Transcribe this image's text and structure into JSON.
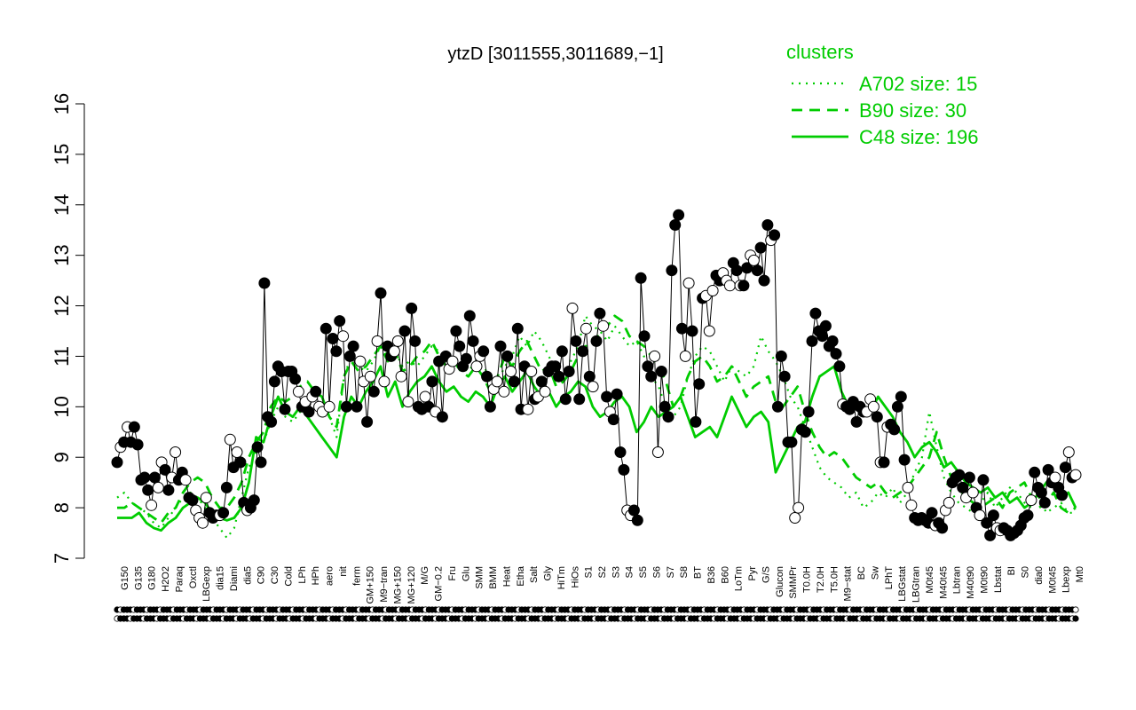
{
  "chart_data": {
    "type": "line",
    "title": "ytzD [3011555,3011689,−1]",
    "xlabel": "",
    "ylabel": "",
    "ylim": [
      7,
      16
    ],
    "yticks": [
      7,
      8,
      9,
      10,
      11,
      12,
      13,
      14,
      15,
      16
    ],
    "grid": false,
    "legend": {
      "title": "clusters",
      "placement": "top-right",
      "color": "#00cc00",
      "entries": [
        {
          "label": "A702 size: 15",
          "style": "dotted"
        },
        {
          "label": "B90 size: 30",
          "style": "dashed"
        },
        {
          "label": "C48 size: 196",
          "style": "solid"
        }
      ]
    },
    "x_tick_labels": [
      "G150",
      "G135",
      "G180",
      "H2O2",
      "Paraq",
      "Oxctl",
      "LBGexp",
      "dia15",
      "Diami",
      "dia5",
      "C90",
      "C30",
      "Cold",
      "LPh",
      "HPh",
      "aero",
      "nit",
      "ferm",
      "GM+150",
      "M9−tran",
      "MG+150",
      "MG+120",
      "M/G",
      "GM−0.2",
      "Fru",
      "Glu",
      "SMM",
      "BMM",
      "Heat",
      "Etha",
      "Salt",
      "Gly",
      "HiTm",
      "HiOs",
      "S1",
      "S2",
      "S3",
      "S4",
      "S5",
      "S6",
      "S7",
      "S8",
      "BT",
      "B36",
      "B60",
      "LoTm",
      "Pyr",
      "G/S",
      "Glucon",
      "SMMPr",
      "T0.0H",
      "T2.0H",
      "T5.0H",
      "M9−stat",
      "BC",
      "Sw",
      "LPhT",
      "LBGstat",
      "LBGtran",
      "M0t45",
      "M40t45",
      "Lbtran",
      "M40t90",
      "M0t90",
      "Lbstat",
      "BI",
      "S0",
      "dia0",
      "M0t45",
      "Lbexp",
      "Mt0"
    ],
    "marker_rows": 2,
    "series": [
      {
        "style": "black-line",
        "values": [
          8.9,
          9.2,
          9.3,
          9.6,
          9.3,
          9.6,
          9.25,
          8.55,
          8.6,
          8.35,
          8.05,
          8.6,
          8.4,
          8.9,
          8.75,
          8.35,
          8.6,
          9.1,
          8.55,
          8.7,
          8.55,
          8.2,
          8.15,
          7.95,
          7.8,
          7.7,
          8.2,
          7.9,
          7.8,
          7.85,
          7.85,
          7.9,
          8.4,
          9.35,
          8.8,
          9.1,
          8.9,
          8.1,
          7.95,
          8.0,
          8.15,
          9.2,
          8.9,
          12.45,
          9.8,
          9.7,
          10.5,
          10.8,
          10.7,
          9.95,
          10.7,
          10.7,
          10.55,
          10.3,
          10.0,
          10.1,
          9.9,
          10.2,
          10.3,
          10.0,
          9.9,
          11.55,
          10.0,
          11.35,
          11.1,
          11.7,
          11.4,
          10.0,
          11.0,
          11.2,
          10.0,
          10.9,
          10.5,
          9.7,
          10.6,
          10.3,
          11.3,
          12.25,
          10.5,
          11.2,
          11.0,
          11.1,
          11.3,
          10.6,
          11.5,
          10.1,
          11.95,
          11.3,
          10.0,
          9.95,
          10.2,
          10.0,
          10.5,
          9.9,
          10.9,
          9.8,
          11.0,
          10.75,
          10.9,
          11.5,
          11.2,
          10.8,
          10.95,
          11.8,
          11.3,
          10.8,
          11.0,
          11.1,
          10.6,
          10.0,
          10.35,
          10.5,
          11.2,
          10.3,
          11.0,
          10.7,
          10.5,
          11.55,
          9.95,
          10.8,
          9.95,
          10.7,
          10.15,
          10.2,
          10.5,
          10.3,
          10.7,
          10.8,
          10.8,
          10.6,
          11.1,
          10.15,
          10.7,
          11.95,
          11.3,
          10.15,
          11.1,
          11.55,
          10.6,
          10.4,
          11.3,
          11.85,
          11.6,
          10.2,
          9.9,
          9.75,
          10.25,
          9.1,
          8.75,
          7.95,
          7.85,
          7.95,
          7.75,
          12.55,
          11.4,
          10.8,
          10.6,
          11.0,
          9.1,
          10.7,
          10.0,
          9.8,
          12.7,
          13.6,
          13.8,
          11.55,
          11.0,
          12.45,
          11.5,
          9.7,
          10.45,
          12.15,
          12.2,
          11.5,
          12.3,
          12.6,
          12.5,
          12.65,
          12.5,
          12.4,
          12.85,
          12.7,
          12.4,
          12.4,
          12.75,
          13.0,
          12.9,
          12.7,
          13.15,
          12.5,
          13.6,
          13.3,
          13.4,
          10.0,
          11.0,
          10.6,
          9.3,
          9.3,
          7.8,
          8.0,
          9.55,
          9.5,
          9.9,
          11.3,
          11.85,
          11.5,
          11.4,
          11.6,
          11.2,
          11.3,
          11.05,
          10.8,
          10.05,
          10.0,
          9.95,
          10.1,
          9.7,
          10.0,
          9.9,
          9.9,
          10.15,
          10.0,
          9.8,
          8.9,
          8.9,
          9.6,
          9.65,
          9.55,
          10.0,
          10.2,
          8.95,
          8.4,
          8.05,
          7.8,
          7.75,
          7.8,
          7.75,
          7.7,
          7.9,
          7.65,
          7.7,
          7.6,
          7.95,
          8.1,
          8.5,
          8.6,
          8.65,
          8.4,
          8.2,
          8.6,
          8.3,
          8.0,
          7.85,
          8.55,
          7.7,
          7.45,
          7.85,
          7.6,
          7.55,
          7.6,
          7.55,
          7.45,
          7.5,
          7.55,
          7.65,
          7.8,
          7.85,
          8.15,
          8.7,
          8.4,
          8.3,
          8.1,
          8.75,
          8.5,
          8.6,
          8.4,
          8.25,
          8.8,
          9.1,
          8.6,
          8.65
        ]
      },
      {
        "style": "green-solid",
        "values": [
          7.8,
          7.8,
          7.8,
          7.9,
          7.7,
          7.6,
          7.55,
          7.7,
          7.8,
          8.0,
          8.1,
          8.2,
          8.1,
          7.9,
          7.8,
          7.75,
          7.8,
          8.0,
          8.5,
          9.4,
          9.3,
          9.8,
          10.2,
          9.9,
          9.8,
          10.0,
          9.8,
          9.6,
          9.4,
          9.2,
          9.0,
          9.8,
          10.2,
          10.0,
          10.3,
          10.5,
          10.8,
          10.2,
          10.5,
          10.0,
          10.3,
          10.5,
          10.6,
          10.8,
          10.5,
          10.3,
          10.4,
          10.2,
          10.1,
          10.3,
          10.2,
          10.0,
          10.4,
          10.6,
          10.3,
          10.5,
          10.7,
          10.4,
          10.2,
          10.3,
          10.0,
          10.2,
          10.3,
          10.5,
          10.4,
          10.0,
          9.8,
          9.9,
          10.1,
          10.2,
          10.0,
          9.5,
          9.7,
          10.0,
          9.8,
          9.9,
          10.0,
          10.2,
          9.8,
          9.4,
          9.5,
          9.6,
          9.4,
          9.8,
          10.2,
          9.9,
          9.6,
          9.8,
          9.9,
          9.7,
          8.7,
          9.0,
          9.3,
          9.6,
          9.7,
          10.2,
          10.6,
          10.7,
          10.8,
          10.3,
          10.0,
          10.1,
          10.0,
          9.9,
          10.2,
          10.0,
          9.8,
          9.5,
          9.3,
          9.0,
          9.2,
          9.3,
          9.1,
          8.8,
          8.9,
          8.7,
          8.5,
          8.4,
          8.3,
          8.4,
          8.2,
          8.3,
          8.1,
          8.2,
          8.0,
          8.1,
          8.3,
          8.5,
          8.6,
          8.2,
          8.3,
          8.0
        ]
      },
      {
        "style": "green-dashed",
        "values": [
          8.0,
          8.0,
          8.1,
          8.0,
          7.9,
          7.8,
          7.7,
          7.9,
          8.0,
          8.3,
          8.5,
          8.6,
          8.5,
          8.2,
          8.0,
          8.0,
          8.2,
          8.5,
          9.0,
          9.3,
          9.5,
          10.0,
          10.2,
          10.1,
          10.2,
          10.4,
          10.5,
          10.3,
          10.2,
          9.8,
          9.6,
          10.6,
          10.9,
          10.7,
          10.8,
          11.0,
          11.2,
          10.9,
          11.1,
          10.7,
          10.8,
          11.0,
          11.1,
          11.3,
          11.0,
          10.8,
          10.9,
          10.7,
          10.6,
          10.8,
          10.6,
          10.3,
          10.6,
          11.0,
          10.8,
          11.1,
          11.3,
          11.0,
          10.7,
          10.8,
          10.4,
          10.5,
          10.7,
          11.0,
          11.2,
          11.2,
          11.5,
          11.6,
          11.8,
          11.7,
          11.4,
          11.3,
          11.2,
          11.0,
          10.8,
          10.5,
          10.0,
          10.2,
          10.6,
          10.9,
          11.0,
          10.8,
          10.5,
          10.6,
          10.8,
          10.5,
          10.2,
          10.4,
          10.5,
          10.6,
          10.1,
          10.0,
          10.2,
          10.4,
          9.9,
          9.5,
          9.2,
          9.0,
          9.1,
          9.0,
          8.8,
          8.6,
          8.5,
          8.4,
          8.5,
          8.3,
          8.2,
          8.3,
          8.4,
          8.6,
          8.8,
          9.0,
          9.5,
          9.0,
          8.6,
          8.4,
          8.2,
          8.1,
          8.0,
          8.1,
          8.2,
          8.0,
          8.3,
          8.4,
          8.5,
          8.2,
          8.0,
          8.1,
          8.3,
          8.0,
          7.9,
          8.0
        ]
      },
      {
        "style": "green-dotted",
        "values": [
          8.2,
          8.3,
          8.1,
          8.0,
          7.9,
          7.7,
          7.6,
          7.8,
          8.0,
          8.2,
          8.3,
          8.2,
          8.0,
          7.8,
          7.6,
          7.4,
          7.6,
          8.2,
          8.8,
          9.1,
          9.3,
          9.7,
          10.0,
          9.8,
          9.7,
          9.9,
          10.2,
          10.4,
          10.2,
          9.8,
          9.4,
          10.6,
          11.0,
          10.8,
          10.7,
          10.9,
          11.2,
          11.0,
          11.1,
          10.8,
          10.9,
          10.8,
          11.0,
          11.2,
          11.1,
          11.0,
          10.9,
          10.8,
          10.7,
          10.9,
          10.8,
          10.6,
          10.5,
          10.8,
          11.0,
          11.4,
          11.2,
          11.5,
          11.3,
          11.0,
          10.7,
          10.5,
          10.9,
          11.2,
          11.8,
          11.6,
          11.5,
          11.3,
          11.6,
          11.4,
          11.2,
          11.3,
          11.0,
          10.6,
          10.4,
          10.0,
          9.8,
          10.0,
          10.6,
          11.0,
          11.2,
          11.1,
          10.8,
          10.5,
          10.8,
          10.7,
          10.6,
          10.8,
          11.4,
          11.1,
          10.9,
          10.6,
          10.2,
          10.0,
          9.6,
          9.2,
          8.8,
          8.6,
          8.5,
          8.4,
          8.2,
          8.3,
          8.0,
          8.1,
          8.3,
          8.2,
          8.4,
          8.1,
          8.3,
          8.7,
          9.0,
          9.9,
          9.2,
          8.6,
          8.3,
          8.1,
          8.0,
          7.9,
          8.1,
          8.3,
          8.0,
          8.2,
          8.4,
          8.3,
          8.1,
          8.0,
          8.2,
          7.9,
          8.0,
          8.1,
          7.9,
          7.9
        ]
      }
    ]
  }
}
